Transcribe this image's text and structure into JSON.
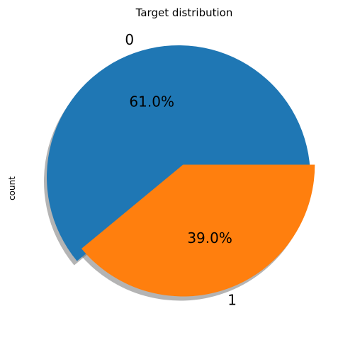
{
  "chart_data": {
    "type": "pie",
    "title": "Target distribution",
    "ylabel": "count",
    "categories": [
      "0",
      "1"
    ],
    "values": [
      61.0,
      39.0
    ],
    "percent_labels": [
      "61.0%",
      "39.0%"
    ],
    "colors": [
      "#1f77b4",
      "#ff7f0e"
    ],
    "explode": [
      0,
      0.1
    ],
    "shadow": true,
    "start_angle": 0
  }
}
